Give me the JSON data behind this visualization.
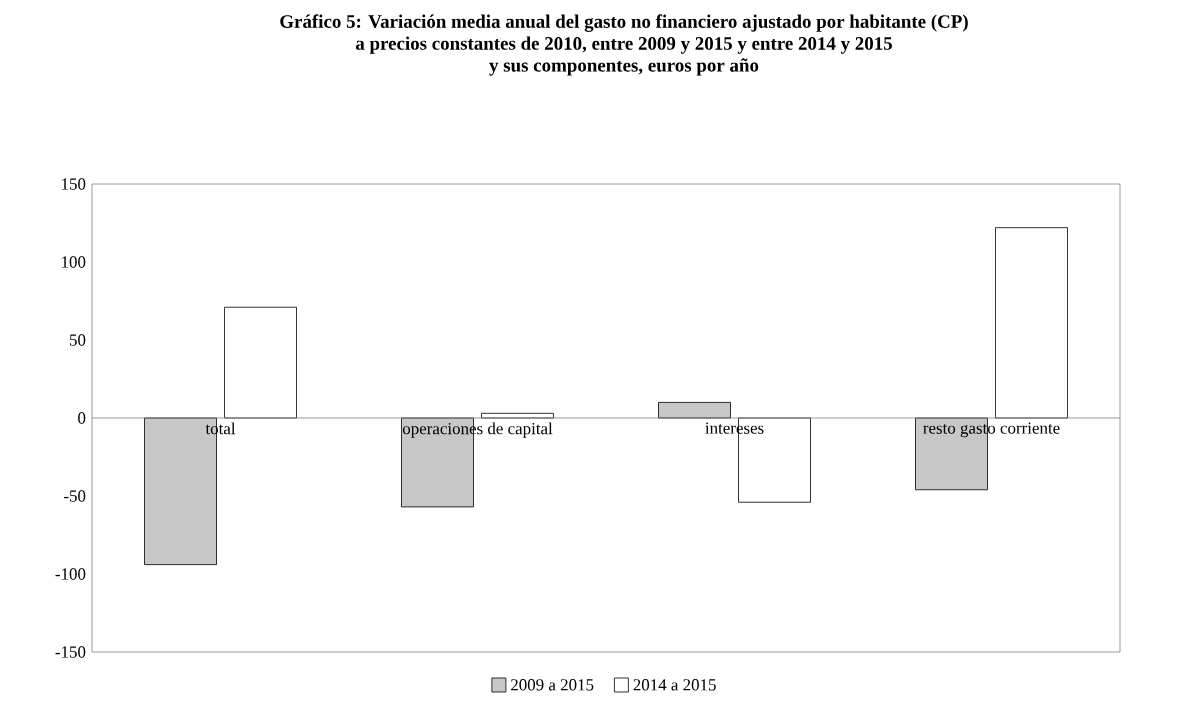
{
  "chart_data": {
    "type": "bar",
    "title": "Gráfico 5: Variación media anual del gasto no financiero ajustado por habitante (CP)\na precios constantes de 2010, entre 2009 y 2015 y entre 2014 y 2015\ny sus componentes, euros por año",
    "categories": [
      "total",
      "operaciones de capital",
      "intereses",
      "resto gasto corriente"
    ],
    "series": [
      {
        "name": "2009 a 2015",
        "color": "#c8c8c8",
        "values": [
          -94,
          -57,
          10,
          -46
        ]
      },
      {
        "name": "2014 a 2015",
        "color": "#ffffff",
        "values": [
          71,
          3,
          -54,
          122
        ]
      }
    ],
    "ylim": [
      -150,
      150
    ],
    "yticks": [
      -150,
      -100,
      -50,
      0,
      50,
      100,
      150
    ],
    "legend": "bottom",
    "grid": false
  }
}
